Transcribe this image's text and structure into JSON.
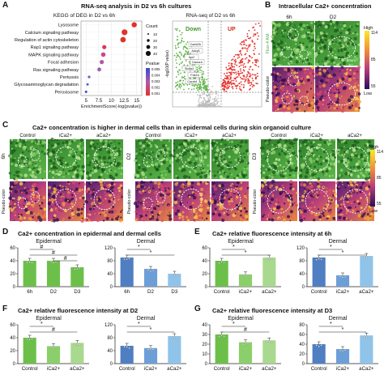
{
  "panelA": {
    "label": "A",
    "title": "RNA-seq analysis in D2 vs 6h cultures",
    "kegg": {
      "title": "KEGG of DEG in D2 vs 6h",
      "xlabel": "EnrichmentScore(-log(pvalue))",
      "pathways": [
        "Lysosome",
        "Calcium signaling pathway",
        "Regulation of actin cytoskeleton",
        "Rap1 signaling pathway",
        "MAPK signaling pathway",
        "Focal adhesion",
        "Ras signaling pathway",
        "Pertussis",
        "Glycosaminoglycan degradation",
        "Peroxisome"
      ],
      "scores": [
        14.5,
        12.6,
        12.3,
        8.6,
        8.4,
        8.1,
        7.6,
        5.6,
        5.3,
        5.0
      ],
      "xticks": [
        "5",
        "7.5",
        "10",
        "12.5",
        "15"
      ],
      "count_label": "Count",
      "count_values": [
        "10",
        "20",
        "30",
        "40"
      ],
      "pvalue_label": "Pvalue",
      "pvalue_ticks": [
        "0.005",
        "0.004",
        "0.003",
        "0.002",
        "0.001"
      ]
    },
    "volcano": {
      "title": "RNA-seq of D2 vs 6h",
      "down": "Down",
      "up": "UP",
      "ylabel": "-log10(P value)",
      "genes": [
        "Camk2b",
        "Adcy5",
        "Itpr2",
        "Cacna1i",
        "Slc8a3",
        "Pde1b",
        "Cacnb1"
      ]
    }
  },
  "panelB": {
    "label": "B",
    "title": "Intracellular Ca2+ concentration",
    "cols": [
      "6h",
      "D2"
    ],
    "rows": [
      "Fluo-4 AM",
      "Pseudo-color"
    ],
    "scale_bar": "50um",
    "colorbar": {
      "high": "High",
      "low": "Low",
      "ticks": [
        "114",
        "85",
        "55"
      ]
    }
  },
  "panelC": {
    "label": "C",
    "title": "Ca2+ concentration is higher in dermal cells than in epidermal cells during skin organoid culture",
    "groups": [
      {
        "time": "6h",
        "cols": [
          "Control",
          "iCa2+",
          "aCa2+"
        ]
      },
      {
        "time": "D2",
        "cols": [
          "Control",
          "iCa2+",
          "aCa2+"
        ]
      },
      {
        "time": "D3",
        "cols": [
          "Control",
          "iCa2+",
          "aCa2+"
        ]
      }
    ],
    "row_label": "Pseudo-color",
    "scale_bar": "50um",
    "colorbar": {
      "high": "High",
      "low": "Low",
      "ticks": [
        "114",
        "85",
        "55"
      ]
    }
  },
  "panelD": {
    "label": "D",
    "title": "Ca2+ concentration in epidermal and dermal cells",
    "charts": [
      {
        "subtitle": "Epidermal",
        "categories": [
          "6h",
          "D2",
          "D3"
        ],
        "values": [
          40,
          40,
          30
        ],
        "ylim": [
          0,
          60
        ],
        "yticks": [
          "0",
          "20",
          "40",
          "60"
        ],
        "stars": [
          "#",
          "#",
          "#"
        ]
      },
      {
        "subtitle": "Dermal",
        "categories": [
          "6h",
          "D2",
          "D3"
        ],
        "values": [
          90,
          55,
          40
        ],
        "ylim": [
          0,
          120
        ],
        "yticks": [
          "0",
          "40",
          "80",
          "120"
        ],
        "stars": [
          "*",
          "*"
        ]
      }
    ]
  },
  "panelE": {
    "label": "E",
    "title": "Ca2+ relative fluorescence intensity at 6h",
    "charts": [
      {
        "subtitle": "Epidermal",
        "categories": [
          "Control",
          "iCa2+",
          "aCa2+"
        ],
        "values": [
          40,
          19,
          45
        ],
        "ylim": [
          0,
          60
        ],
        "yticks": [
          "0",
          "20",
          "40",
          "60"
        ],
        "stars": [
          "*",
          "*"
        ]
      },
      {
        "subtitle": "Dermal",
        "categories": [
          "Control",
          "iCa2+",
          "aCa2+"
        ],
        "values": [
          90,
          35,
          95
        ],
        "ylim": [
          0,
          120
        ],
        "yticks": [
          "0",
          "40",
          "80",
          "120"
        ],
        "stars": [
          "*",
          "*"
        ]
      }
    ]
  },
  "panelF": {
    "label": "F",
    "title": "Ca2+ relative fluorescence intensity at D2",
    "charts": [
      {
        "subtitle": "Epidermal",
        "categories": [
          "Control",
          "iCa2+",
          "aCa2+"
        ],
        "values": [
          40,
          27,
          32
        ],
        "ylim": [
          0,
          60
        ],
        "yticks": [
          "0",
          "20",
          "40",
          "60"
        ],
        "stars": [
          "*",
          "#"
        ]
      },
      {
        "subtitle": "Dermal",
        "categories": [
          "Control",
          "iCa2+",
          "aCa2+"
        ],
        "values": [
          55,
          48,
          85
        ],
        "ylim": [
          0,
          120
        ],
        "yticks": [
          "0",
          "40",
          "80",
          "120"
        ],
        "stars": [
          "*",
          "*"
        ]
      }
    ]
  },
  "panelG": {
    "label": "G",
    "title": "Ca2+ relative fluorescence intensity at D3",
    "charts": [
      {
        "subtitle": "Epidermal",
        "categories": [
          "Control",
          "iCa2+",
          "aCa2+"
        ],
        "values": [
          30,
          22,
          24
        ],
        "ylim": [
          0,
          40
        ],
        "yticks": [
          "0",
          "10",
          "20",
          "30",
          "40"
        ],
        "stars": [
          "*",
          "#"
        ]
      },
      {
        "subtitle": "Dermal",
        "categories": [
          "Control",
          "iCa2+",
          "aCa2+"
        ],
        "values": [
          40,
          30,
          58
        ],
        "ylim": [
          0,
          80
        ],
        "yticks": [
          "0",
          "20",
          "40",
          "60",
          "80"
        ],
        "stars": [
          "*",
          "*"
        ]
      }
    ]
  },
  "colors": {
    "green": "#6cc04a",
    "lightgreen": "#a8d98e",
    "blue": "#4f7fc2",
    "lightblue": "#8fc3ea",
    "red": "#e0322b"
  }
}
